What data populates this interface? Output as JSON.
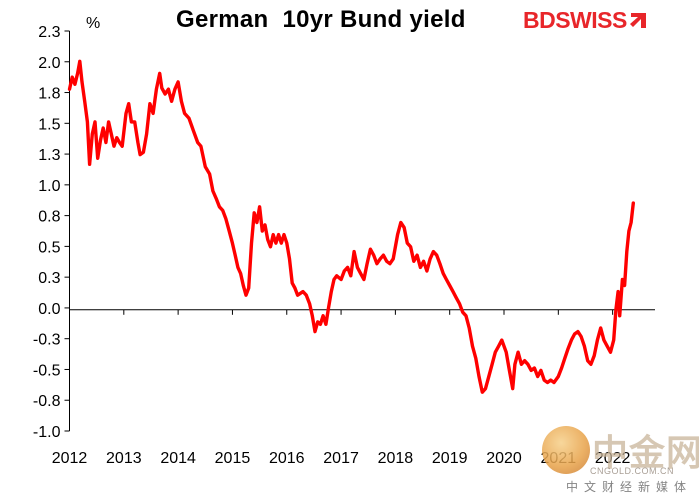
{
  "chart_data": {
    "type": "line",
    "title": "German  10yr Bund yield",
    "ylabel": "%",
    "xlabel": "",
    "ylim": [
      -1.0,
      2.3
    ],
    "xlim": [
      2012,
      2022.78
    ],
    "yticks": [
      "2.3",
      "2.0",
      "1.8",
      "1.5",
      "1.3",
      "1.0",
      "0.8",
      "0.5",
      "0.3",
      "0.0",
      "-0.3",
      "-0.5",
      "-0.8",
      "-1.0"
    ],
    "xticks": [
      "2012",
      "2013",
      "2014",
      "2015",
      "2016",
      "2017",
      "2018",
      "2019",
      "2020",
      "2021",
      "2022"
    ],
    "grid": false,
    "legend": "none",
    "series": [
      {
        "color": "#ff0000",
        "points": [
          [
            2012.0,
            1.82
          ],
          [
            2012.05,
            1.92
          ],
          [
            2012.1,
            1.86
          ],
          [
            2012.15,
            1.95
          ],
          [
            2012.19,
            2.05
          ],
          [
            2012.23,
            1.88
          ],
          [
            2012.28,
            1.72
          ],
          [
            2012.33,
            1.55
          ],
          [
            2012.37,
            1.2
          ],
          [
            2012.42,
            1.45
          ],
          [
            2012.47,
            1.55
          ],
          [
            2012.52,
            1.25
          ],
          [
            2012.57,
            1.4
          ],
          [
            2012.62,
            1.5
          ],
          [
            2012.67,
            1.38
          ],
          [
            2012.72,
            1.55
          ],
          [
            2012.77,
            1.45
          ],
          [
            2012.82,
            1.35
          ],
          [
            2012.87,
            1.42
          ],
          [
            2012.92,
            1.38
          ],
          [
            2012.97,
            1.35
          ],
          [
            2013.04,
            1.62
          ],
          [
            2013.09,
            1.7
          ],
          [
            2013.14,
            1.55
          ],
          [
            2013.2,
            1.55
          ],
          [
            2013.26,
            1.38
          ],
          [
            2013.3,
            1.28
          ],
          [
            2013.36,
            1.3
          ],
          [
            2013.42,
            1.45
          ],
          [
            2013.48,
            1.7
          ],
          [
            2013.54,
            1.62
          ],
          [
            2013.6,
            1.82
          ],
          [
            2013.66,
            1.95
          ],
          [
            2013.7,
            1.83
          ],
          [
            2013.76,
            1.78
          ],
          [
            2013.82,
            1.82
          ],
          [
            2013.88,
            1.72
          ],
          [
            2013.94,
            1.82
          ],
          [
            2014.0,
            1.88
          ],
          [
            2014.06,
            1.72
          ],
          [
            2014.12,
            1.62
          ],
          [
            2014.2,
            1.58
          ],
          [
            2014.28,
            1.48
          ],
          [
            2014.36,
            1.38
          ],
          [
            2014.42,
            1.35
          ],
          [
            2014.5,
            1.18
          ],
          [
            2014.58,
            1.12
          ],
          [
            2014.64,
            0.98
          ],
          [
            2014.7,
            0.92
          ],
          [
            2014.76,
            0.85
          ],
          [
            2014.82,
            0.82
          ],
          [
            2014.88,
            0.75
          ],
          [
            2014.94,
            0.65
          ],
          [
            2015.0,
            0.55
          ],
          [
            2015.05,
            0.45
          ],
          [
            2015.1,
            0.35
          ],
          [
            2015.15,
            0.3
          ],
          [
            2015.2,
            0.2
          ],
          [
            2015.25,
            0.12
          ],
          [
            2015.3,
            0.18
          ],
          [
            2015.35,
            0.55
          ],
          [
            2015.4,
            0.8
          ],
          [
            2015.45,
            0.72
          ],
          [
            2015.5,
            0.85
          ],
          [
            2015.55,
            0.65
          ],
          [
            2015.6,
            0.7
          ],
          [
            2015.65,
            0.58
          ],
          [
            2015.7,
            0.52
          ],
          [
            2015.75,
            0.62
          ],
          [
            2015.8,
            0.55
          ],
          [
            2015.85,
            0.62
          ],
          [
            2015.9,
            0.55
          ],
          [
            2015.95,
            0.62
          ],
          [
            2016.0,
            0.55
          ],
          [
            2016.05,
            0.42
          ],
          [
            2016.1,
            0.22
          ],
          [
            2016.15,
            0.18
          ],
          [
            2016.2,
            0.12
          ],
          [
            2016.3,
            0.15
          ],
          [
            2016.36,
            0.12
          ],
          [
            2016.42,
            0.05
          ],
          [
            2016.47,
            -0.05
          ],
          [
            2016.52,
            -0.18
          ],
          [
            2016.57,
            -0.1
          ],
          [
            2016.62,
            -0.12
          ],
          [
            2016.67,
            -0.05
          ],
          [
            2016.72,
            -0.12
          ],
          [
            2016.77,
            0.02
          ],
          [
            2016.82,
            0.15
          ],
          [
            2016.87,
            0.25
          ],
          [
            2016.92,
            0.28
          ],
          [
            2017.0,
            0.25
          ],
          [
            2017.06,
            0.32
          ],
          [
            2017.12,
            0.35
          ],
          [
            2017.18,
            0.28
          ],
          [
            2017.24,
            0.48
          ],
          [
            2017.3,
            0.35
          ],
          [
            2017.36,
            0.3
          ],
          [
            2017.42,
            0.25
          ],
          [
            2017.48,
            0.38
          ],
          [
            2017.54,
            0.5
          ],
          [
            2017.6,
            0.45
          ],
          [
            2017.66,
            0.38
          ],
          [
            2017.72,
            0.42
          ],
          [
            2017.78,
            0.45
          ],
          [
            2017.84,
            0.4
          ],
          [
            2017.9,
            0.38
          ],
          [
            2017.96,
            0.42
          ],
          [
            2018.04,
            0.62
          ],
          [
            2018.1,
            0.72
          ],
          [
            2018.16,
            0.68
          ],
          [
            2018.22,
            0.55
          ],
          [
            2018.28,
            0.52
          ],
          [
            2018.34,
            0.4
          ],
          [
            2018.4,
            0.45
          ],
          [
            2018.46,
            0.35
          ],
          [
            2018.52,
            0.4
          ],
          [
            2018.58,
            0.32
          ],
          [
            2018.64,
            0.42
          ],
          [
            2018.7,
            0.48
          ],
          [
            2018.76,
            0.45
          ],
          [
            2018.82,
            0.38
          ],
          [
            2018.88,
            0.3
          ],
          [
            2018.94,
            0.25
          ],
          [
            2019.0,
            0.2
          ],
          [
            2019.06,
            0.15
          ],
          [
            2019.12,
            0.1
          ],
          [
            2019.18,
            0.05
          ],
          [
            2019.24,
            -0.02
          ],
          [
            2019.3,
            -0.05
          ],
          [
            2019.36,
            -0.15
          ],
          [
            2019.42,
            -0.3
          ],
          [
            2019.48,
            -0.4
          ],
          [
            2019.54,
            -0.55
          ],
          [
            2019.6,
            -0.68
          ],
          [
            2019.66,
            -0.65
          ],
          [
            2019.72,
            -0.55
          ],
          [
            2019.78,
            -0.45
          ],
          [
            2019.84,
            -0.35
          ],
          [
            2019.9,
            -0.3
          ],
          [
            2019.96,
            -0.25
          ],
          [
            2020.04,
            -0.35
          ],
          [
            2020.1,
            -0.5
          ],
          [
            2020.16,
            -0.65
          ],
          [
            2020.2,
            -0.45
          ],
          [
            2020.26,
            -0.35
          ],
          [
            2020.32,
            -0.45
          ],
          [
            2020.38,
            -0.42
          ],
          [
            2020.44,
            -0.45
          ],
          [
            2020.5,
            -0.5
          ],
          [
            2020.56,
            -0.48
          ],
          [
            2020.62,
            -0.55
          ],
          [
            2020.68,
            -0.5
          ],
          [
            2020.74,
            -0.58
          ],
          [
            2020.8,
            -0.6
          ],
          [
            2020.86,
            -0.58
          ],
          [
            2020.92,
            -0.6
          ],
          [
            2021.0,
            -0.55
          ],
          [
            2021.06,
            -0.48
          ],
          [
            2021.12,
            -0.4
          ],
          [
            2021.18,
            -0.32
          ],
          [
            2021.24,
            -0.25
          ],
          [
            2021.3,
            -0.2
          ],
          [
            2021.36,
            -0.18
          ],
          [
            2021.42,
            -0.22
          ],
          [
            2021.48,
            -0.3
          ],
          [
            2021.54,
            -0.42
          ],
          [
            2021.6,
            -0.45
          ],
          [
            2021.66,
            -0.38
          ],
          [
            2021.72,
            -0.25
          ],
          [
            2021.78,
            -0.15
          ],
          [
            2021.84,
            -0.25
          ],
          [
            2021.9,
            -0.3
          ],
          [
            2021.96,
            -0.35
          ],
          [
            2022.02,
            -0.25
          ],
          [
            2022.06,
            0.0
          ],
          [
            2022.1,
            0.15
          ],
          [
            2022.13,
            -0.05
          ],
          [
            2022.18,
            0.25
          ],
          [
            2022.22,
            0.2
          ],
          [
            2022.26,
            0.48
          ],
          [
            2022.3,
            0.65
          ],
          [
            2022.34,
            0.72
          ],
          [
            2022.38,
            0.88
          ]
        ]
      }
    ]
  },
  "brand": {
    "logo_text": "BDSWISS",
    "watermark_text": "中金网",
    "watermark_url": "CNGOLD.COM.CN",
    "watermark_sub": "中文财经新媒体",
    "line_color": "#ff0000",
    "logo_color": "#e8262a"
  }
}
